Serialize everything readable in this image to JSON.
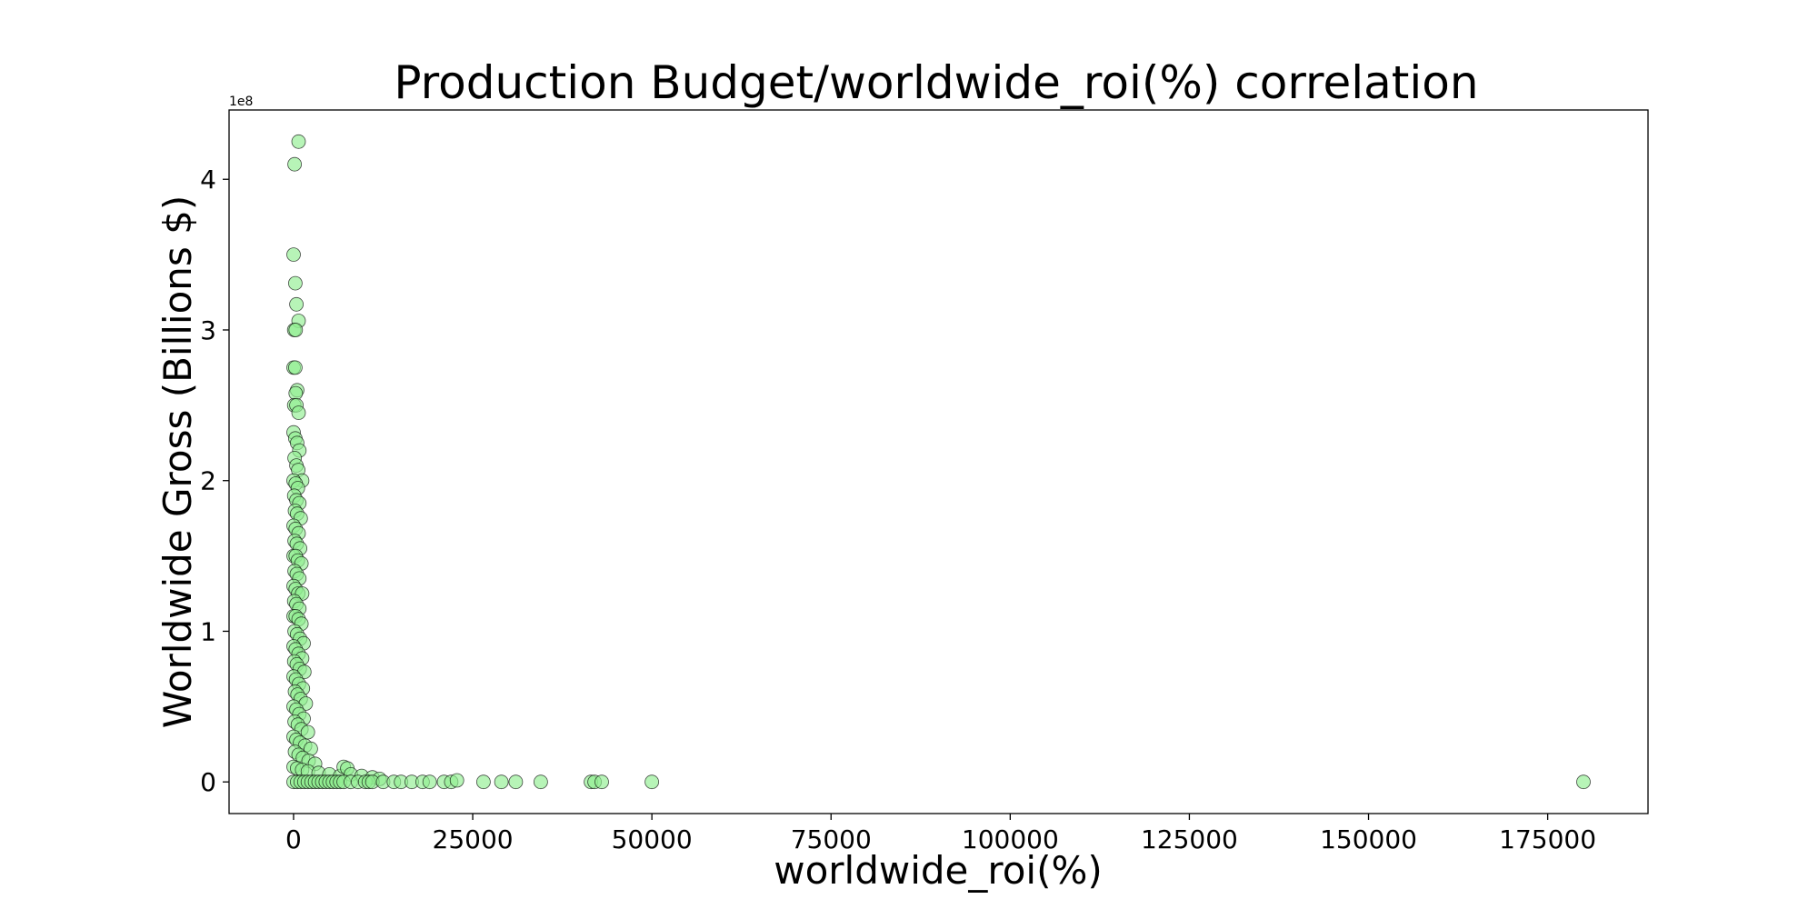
{
  "chart_data": {
    "type": "scatter",
    "title": "Production Budget/worldwide_roi(%) correlation",
    "xlabel": "worldwide_roi(%)",
    "ylabel": "Worldwide Gross (Billions $)",
    "y_offset_label": "1e8",
    "xlim": [
      -9000,
      189000
    ],
    "ylim": [
      -21000000,
      446000000
    ],
    "x_ticks": [
      0,
      25000,
      50000,
      75000,
      100000,
      125000,
      150000,
      175000
    ],
    "x_tick_labels": [
      "0",
      "25000",
      "50000",
      "75000",
      "100000",
      "125000",
      "150000",
      "175000"
    ],
    "y_ticks": [
      0,
      100000000,
      200000000,
      300000000,
      400000000
    ],
    "y_tick_labels": [
      "0",
      "1",
      "2",
      "3",
      "4"
    ],
    "grid": false,
    "marker_color": "#90ee90",
    "marker_edge_color": "#000000",
    "points": [
      [
        700,
        425000000
      ],
      [
        150,
        410000000
      ],
      [
        0,
        350000000
      ],
      [
        250,
        331000000
      ],
      [
        400,
        317000000
      ],
      [
        700,
        306000000
      ],
      [
        100,
        300000000
      ],
      [
        300,
        300000000
      ],
      [
        0,
        275000000
      ],
      [
        250,
        275000000
      ],
      [
        500,
        260000000
      ],
      [
        300,
        258000000
      ],
      [
        100,
        250000000
      ],
      [
        400,
        250000000
      ],
      [
        700,
        245000000
      ],
      [
        0,
        232000000
      ],
      [
        250,
        228000000
      ],
      [
        500,
        225000000
      ],
      [
        800,
        220000000
      ],
      [
        150,
        215000000
      ],
      [
        400,
        210000000
      ],
      [
        650,
        207000000
      ],
      [
        1200,
        200000000
      ],
      [
        0,
        200000000
      ],
      [
        300,
        198000000
      ],
      [
        600,
        195000000
      ],
      [
        100,
        190000000
      ],
      [
        400,
        187000000
      ],
      [
        800,
        185000000
      ],
      [
        200,
        180000000
      ],
      [
        500,
        178000000
      ],
      [
        1000,
        175000000
      ],
      [
        0,
        170000000
      ],
      [
        300,
        168000000
      ],
      [
        700,
        165000000
      ],
      [
        150,
        160000000
      ],
      [
        450,
        158000000
      ],
      [
        900,
        155000000
      ],
      [
        0,
        150000000
      ],
      [
        300,
        150000000
      ],
      [
        600,
        147000000
      ],
      [
        1100,
        145000000
      ],
      [
        150,
        140000000
      ],
      [
        450,
        138000000
      ],
      [
        800,
        135000000
      ],
      [
        0,
        130000000
      ],
      [
        300,
        128000000
      ],
      [
        650,
        125000000
      ],
      [
        1200,
        125000000
      ],
      [
        100,
        120000000
      ],
      [
        400,
        118000000
      ],
      [
        800,
        115000000
      ],
      [
        0,
        110000000
      ],
      [
        300,
        110000000
      ],
      [
        700,
        108000000
      ],
      [
        1100,
        105000000
      ],
      [
        150,
        100000000
      ],
      [
        500,
        98000000
      ],
      [
        900,
        95000000
      ],
      [
        1400,
        92000000
      ],
      [
        0,
        90000000
      ],
      [
        300,
        88000000
      ],
      [
        700,
        85000000
      ],
      [
        1200,
        82000000
      ],
      [
        100,
        80000000
      ],
      [
        450,
        78000000
      ],
      [
        850,
        75000000
      ],
      [
        1500,
        73000000
      ],
      [
        0,
        70000000
      ],
      [
        350,
        68000000
      ],
      [
        750,
        65000000
      ],
      [
        1300,
        62000000
      ],
      [
        200,
        60000000
      ],
      [
        550,
        58000000
      ],
      [
        1000,
        55000000
      ],
      [
        1700,
        52000000
      ],
      [
        0,
        50000000
      ],
      [
        400,
        48000000
      ],
      [
        800,
        45000000
      ],
      [
        1400,
        42000000
      ],
      [
        150,
        40000000
      ],
      [
        600,
        38000000
      ],
      [
        1100,
        35000000
      ],
      [
        2000,
        33000000
      ],
      [
        0,
        30000000
      ],
      [
        400,
        28000000
      ],
      [
        900,
        26000000
      ],
      [
        1600,
        24000000
      ],
      [
        2400,
        22000000
      ],
      [
        200,
        20000000
      ],
      [
        700,
        18000000
      ],
      [
        1300,
        16000000
      ],
      [
        2100,
        14000000
      ],
      [
        3000,
        12000000
      ],
      [
        0,
        10000000
      ],
      [
        500,
        9000000
      ],
      [
        1200,
        8000000
      ],
      [
        2000,
        7000000
      ],
      [
        3500,
        6000000
      ],
      [
        5000,
        5000000
      ],
      [
        6500,
        4000000
      ],
      [
        7000,
        10000000
      ],
      [
        7500,
        9000000
      ],
      [
        8000,
        5000000
      ],
      [
        9500,
        4000000
      ],
      [
        11000,
        3000000
      ],
      [
        12000,
        2000000
      ],
      [
        0,
        0
      ],
      [
        500,
        0
      ],
      [
        1000,
        0
      ],
      [
        1500,
        0
      ],
      [
        2000,
        0
      ],
      [
        2500,
        0
      ],
      [
        3000,
        0
      ],
      [
        3500,
        0
      ],
      [
        4000,
        0
      ],
      [
        4500,
        0
      ],
      [
        5000,
        0
      ],
      [
        5500,
        0
      ],
      [
        6000,
        0
      ],
      [
        6500,
        0
      ],
      [
        7000,
        0
      ],
      [
        8000,
        0
      ],
      [
        9000,
        0
      ],
      [
        10000,
        0
      ],
      [
        10500,
        0
      ],
      [
        11000,
        0
      ],
      [
        12500,
        0
      ],
      [
        14000,
        0
      ],
      [
        15000,
        0
      ],
      [
        16500,
        0
      ],
      [
        18000,
        0
      ],
      [
        19000,
        0
      ],
      [
        21000,
        0
      ],
      [
        22000,
        0
      ],
      [
        22800,
        1000000
      ],
      [
        26500,
        0
      ],
      [
        29000,
        0
      ],
      [
        31000,
        0
      ],
      [
        34500,
        0
      ],
      [
        41500,
        0
      ],
      [
        42000,
        0
      ],
      [
        43000,
        0
      ],
      [
        50000,
        0
      ],
      [
        180000,
        0
      ]
    ]
  }
}
